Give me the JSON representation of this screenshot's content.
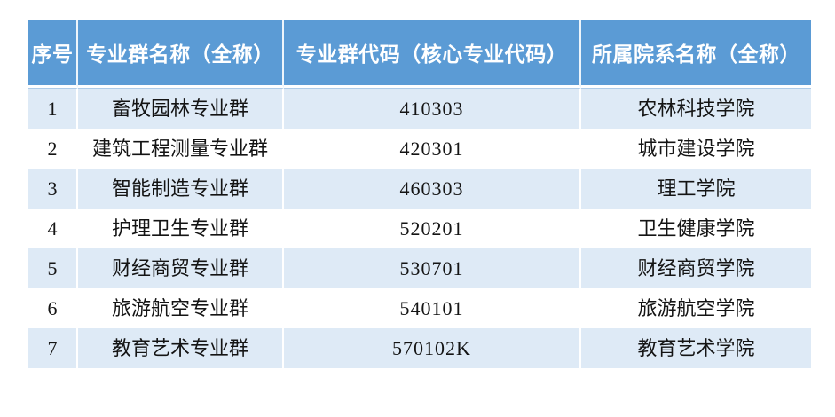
{
  "page": {
    "background": "#ffffff"
  },
  "table": {
    "semantic": "professional-groups-table",
    "colors": {
      "header_bg": "#5b9bd5",
      "header_text": "#ffffff",
      "band_row_bg": "#deeaf6",
      "plain_row_bg": "#ffffff",
      "body_text": "#141414"
    },
    "columns": [
      {
        "key": "no",
        "label": "序号"
      },
      {
        "key": "group",
        "label": "专业群名称（全称）"
      },
      {
        "key": "code",
        "label": "专业群代码（核心专业代码）"
      },
      {
        "key": "college",
        "label": "所属院系名称（全称）"
      }
    ],
    "rows": [
      {
        "no": "1",
        "group": "畜牧园林专业群",
        "code": "410303",
        "college": "农林科技学院"
      },
      {
        "no": "2",
        "group": "建筑工程测量专业群",
        "code": "420301",
        "college": "城市建设学院"
      },
      {
        "no": "3",
        "group": "智能制造专业群",
        "code": "460303",
        "college": "理工学院"
      },
      {
        "no": "4",
        "group": "护理卫生专业群",
        "code": "520201",
        "college": "卫生健康学院"
      },
      {
        "no": "5",
        "group": "财经商贸专业群",
        "code": "530701",
        "college": "财经商贸学院"
      },
      {
        "no": "6",
        "group": "旅游航空专业群",
        "code": "540101",
        "college": "旅游航空学院"
      },
      {
        "no": "7",
        "group": "教育艺术专业群",
        "code": "570102K",
        "college": "教育艺术学院"
      }
    ]
  }
}
